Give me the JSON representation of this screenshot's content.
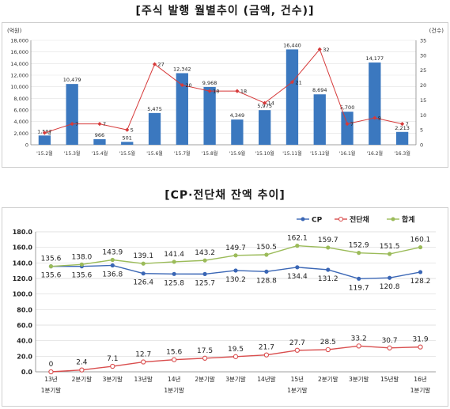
{
  "titles": {
    "top": "[주식 발행 월별추이 (금액, 건수)]",
    "bottom": "[CP·전단채 잔액 추이]"
  },
  "chart_data": [
    {
      "type": "bar",
      "title": "[주식 발행 월별추이 (금액, 건수)]",
      "y_left_unit": "(억원)",
      "y_right_unit": "(건수)",
      "ylim_left": [
        0,
        18000
      ],
      "yticks_left": [
        "0",
        "2,000",
        "4,000",
        "6,000",
        "8,000",
        "10,000",
        "12,000",
        "14,000",
        "16,000",
        "18,000"
      ],
      "ylim_right": [
        0,
        35
      ],
      "yticks_right": [
        "0",
        "5",
        "10",
        "15",
        "20",
        "25",
        "30",
        "35"
      ],
      "categories": [
        "'15.2월",
        "'15.3월",
        "'15.4월",
        "'15.5월",
        "'15.6월",
        "'15.7월",
        "'15.8월",
        "'15.9월",
        "'15.10월",
        "'15.11월",
        "'15.12월",
        "'16.1월",
        "'16.2월",
        "'16.3월"
      ],
      "amount": [
        1597,
        10479,
        966,
        501,
        5475,
        12342,
        9968,
        4349,
        5975,
        16440,
        8694,
        5700,
        14177,
        2213
      ],
      "amount_labels": [
        "1,597",
        "10,479",
        "966",
        "501",
        "5,475",
        "12,342",
        "9,968",
        "4,349",
        "5,975",
        "16,440",
        "8,694",
        "5,700",
        "14,177",
        "2,213"
      ],
      "count": [
        4,
        7,
        7,
        5,
        27,
        20,
        18,
        18,
        14,
        21,
        32,
        7,
        9,
        7
      ],
      "count_labels": [
        "4",
        "7",
        "7",
        "5",
        "27",
        "20",
        "18",
        "18",
        "14",
        "21",
        "32",
        "7",
        "9",
        "7"
      ],
      "colors": {
        "bar": "#3b78bf",
        "line": "#d63a3a"
      }
    },
    {
      "type": "line",
      "title": "[CP·전단채 잔액 추이]",
      "legend_position": "top-right",
      "ylim": [
        0,
        180
      ],
      "yticks": [
        "0.0",
        "20.0",
        "40.0",
        "60.0",
        "80.0",
        "100.0",
        "120.0",
        "140.0",
        "160.0",
        "180.0"
      ],
      "categories": [
        [
          "13년",
          "1분기말"
        ],
        [
          "2분기말",
          ""
        ],
        [
          "3분기말",
          ""
        ],
        [
          "13년말",
          ""
        ],
        [
          "14년",
          "1분기말"
        ],
        [
          "2분기말",
          ""
        ],
        [
          "3분기말",
          ""
        ],
        [
          "14년말",
          ""
        ],
        [
          "15년",
          "1분기말"
        ],
        [
          "2분기말",
          ""
        ],
        [
          "3분기말",
          ""
        ],
        [
          "15년말",
          ""
        ],
        [
          "16년",
          "1분기말"
        ]
      ],
      "series": [
        {
          "name": "CP",
          "color": "#3a66b5",
          "values": [
            135.6,
            135.6,
            136.8,
            126.4,
            125.8,
            125.7,
            130.2,
            128.8,
            134.4,
            131.2,
            119.7,
            120.8,
            128.2
          ],
          "labels": [
            "135.6",
            "135.6",
            "136.8",
            "126.4",
            "125.8",
            "125.7",
            "130.2",
            "128.8",
            "134.4",
            "131.2",
            "119.7",
            "120.8",
            "128.2"
          ]
        },
        {
          "name": "전단채",
          "color": "#d94d4d",
          "values": [
            0,
            2.4,
            7.1,
            12.7,
            15.6,
            17.5,
            19.5,
            21.7,
            27.7,
            28.5,
            33.2,
            30.7,
            31.9
          ],
          "labels": [
            "0",
            "2.4",
            "7.1",
            "12.7",
            "15.6",
            "17.5",
            "19.5",
            "21.7",
            "27.7",
            "28.5",
            "33.2",
            "30.7",
            "31.9"
          ]
        },
        {
          "name": "합계",
          "color": "#9bbb59",
          "values": [
            135.6,
            138.0,
            143.9,
            139.1,
            141.4,
            143.2,
            149.7,
            150.5,
            162.1,
            159.7,
            152.9,
            151.5,
            160.1
          ],
          "labels": [
            "135.6",
            "138.0",
            "143.9",
            "139.1",
            "141.4",
            "143.2",
            "149.7",
            "150.5",
            "162.1",
            "159.7",
            "152.9",
            "151.5",
            "160.1"
          ]
        }
      ]
    }
  ]
}
